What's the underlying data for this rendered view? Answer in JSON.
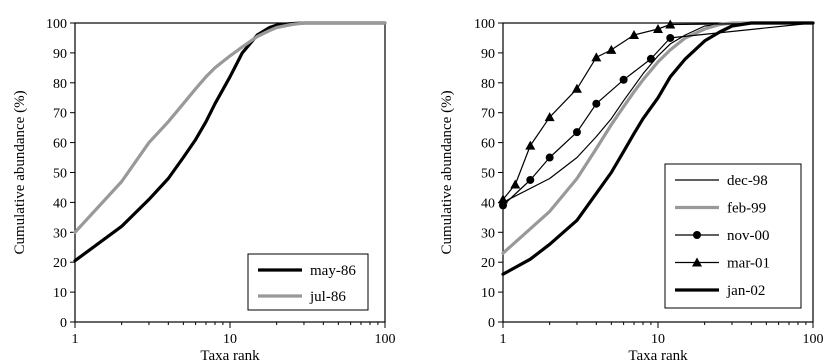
{
  "chart_data": [
    {
      "type": "line",
      "xscale": "log",
      "xlim": [
        1,
        100
      ],
      "ylim": [
        0,
        100
      ],
      "xticks": [
        "1",
        "10",
        "100"
      ],
      "yticks": [
        "0",
        "10",
        "20",
        "30",
        "40",
        "50",
        "60",
        "70",
        "80",
        "90",
        "100"
      ],
      "xlabel": "Taxa rank",
      "ylabel": "Cumulative abundance (%)",
      "grid": false,
      "legend_position": "bottom-right",
      "series": [
        {
          "name": "may-86",
          "color": "#000000",
          "marker": "none",
          "x": [
            1,
            2,
            3,
            4,
            5,
            6,
            7,
            8,
            10,
            12,
            15,
            18,
            20,
            25,
            30,
            40,
            50,
            100
          ],
          "y": [
            20.5,
            32,
            41,
            48,
            55,
            61,
            67,
            73,
            82,
            90,
            96,
            98.5,
            99.3,
            99.8,
            100,
            100,
            100,
            100
          ]
        },
        {
          "name": "jul-86",
          "color": "#999999",
          "marker": "none",
          "x": [
            1,
            2,
            3,
            4,
            5,
            6,
            7,
            8,
            10,
            12,
            15,
            18,
            20,
            25,
            30,
            40,
            50,
            100
          ],
          "y": [
            30,
            47,
            60,
            67,
            73,
            78,
            82,
            85,
            89,
            92,
            95.5,
            97.5,
            98.5,
            99.5,
            100,
            100,
            100,
            100
          ]
        }
      ]
    },
    {
      "type": "line",
      "xscale": "log",
      "xlim": [
        1,
        100
      ],
      "ylim": [
        0,
        100
      ],
      "xticks": [
        "1",
        "10",
        "100"
      ],
      "yticks": [
        "0",
        "10",
        "20",
        "30",
        "40",
        "50",
        "60",
        "70",
        "80",
        "90",
        "100"
      ],
      "xlabel": "Taxa rank",
      "ylabel": "Cumulative abundance (%)",
      "grid": false,
      "legend_position": "bottom-right",
      "series": [
        {
          "name": "dec-98",
          "color": "#000000",
          "marker": "none",
          "x": [
            1,
            2,
            3,
            4,
            5,
            6,
            8,
            10,
            12,
            15,
            20,
            30,
            100
          ],
          "y": [
            40,
            48,
            55,
            62,
            68,
            74,
            83,
            89,
            93,
            96,
            99,
            100,
            100
          ]
        },
        {
          "name": "feb-99",
          "color": "#999999",
          "marker": "none",
          "x": [
            1,
            2,
            3,
            4,
            5,
            6,
            7,
            8,
            10,
            12,
            15,
            20,
            25,
            30,
            100
          ],
          "y": [
            23,
            37,
            48,
            58,
            66,
            72,
            77,
            81,
            87,
            91,
            95,
            98,
            99.5,
            100,
            100
          ]
        },
        {
          "name": "nov-00",
          "color": "#000000",
          "marker": "circle",
          "x": [
            1,
            1.5,
            2,
            3,
            4,
            6,
            9,
            12,
            100
          ],
          "y": [
            39,
            47.5,
            55,
            63.5,
            73,
            81,
            88,
            95,
            100
          ]
        },
        {
          "name": "mar-01",
          "color": "#000000",
          "marker": "triangle",
          "x": [
            1,
            1.2,
            1.5,
            2,
            3,
            4,
            5,
            7,
            10,
            12,
            100
          ],
          "y": [
            41,
            46,
            59,
            68.5,
            78,
            88.5,
            91,
            96,
            98,
            99.5,
            100
          ]
        },
        {
          "name": "jan-02",
          "color": "#000000",
          "marker": "none",
          "x": [
            1,
            1.5,
            2,
            3,
            4,
            5,
            6,
            7,
            8,
            10,
            12,
            15,
            20,
            25,
            30,
            40,
            100
          ],
          "y": [
            16,
            21,
            26,
            34,
            43,
            50,
            57,
            63,
            68,
            75,
            82,
            88,
            94,
            97,
            99,
            100,
            100
          ]
        }
      ]
    }
  ]
}
